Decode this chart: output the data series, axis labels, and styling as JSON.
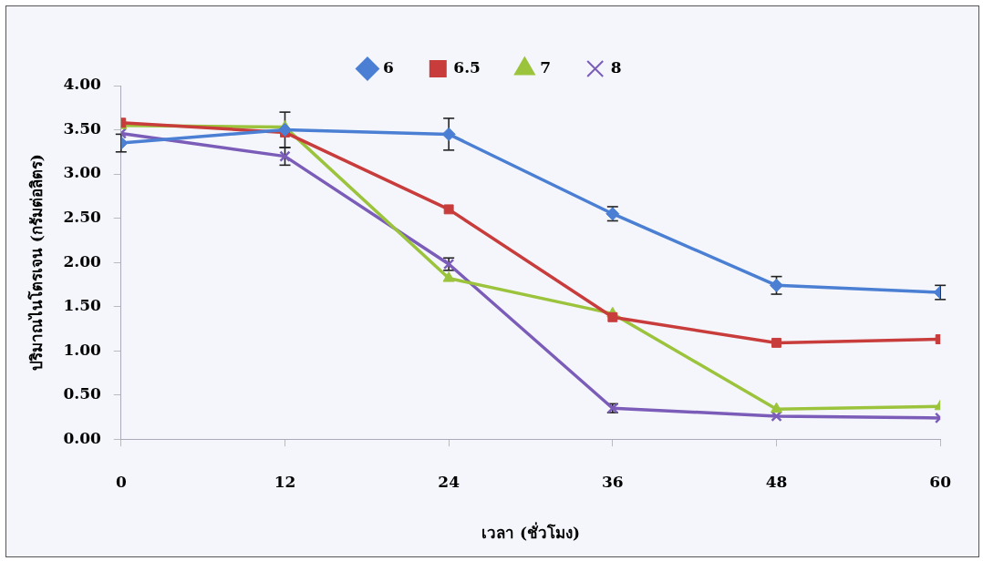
{
  "chart_data": {
    "type": "line",
    "xlabel": "เวลา (ชั่วโมง)",
    "ylabel": "ปริมาณไนโตรเจน (กรัมต่อลิตร)",
    "x": [
      0,
      12,
      24,
      36,
      48,
      60
    ],
    "xlim": [
      0,
      60
    ],
    "xticks": [
      0,
      12,
      24,
      36,
      48,
      60
    ],
    "ylim": [
      0,
      4
    ],
    "yticks": [
      {
        "value": 0,
        "label": "0.00"
      },
      {
        "value": 0.5,
        "label": "0.50"
      },
      {
        "value": 1,
        "label": "1.00"
      },
      {
        "value": 1.5,
        "label": "1.50"
      },
      {
        "value": 2,
        "label": "2.00"
      },
      {
        "value": 2.5,
        "label": "2.50"
      },
      {
        "value": 3,
        "label": "3.00"
      },
      {
        "value": 3.5,
        "label": "3.50"
      },
      {
        "value": 4,
        "label": "4.00"
      }
    ],
    "grid": false,
    "legend": "top",
    "series": [
      {
        "name": "6",
        "color": "#4a7fd4",
        "marker": "diamond",
        "values": [
          3.35,
          3.5,
          3.45,
          2.55,
          1.74,
          1.66
        ],
        "errors": [
          0.1,
          0.2,
          0.18,
          0.08,
          0.1,
          0.08
        ]
      },
      {
        "name": "6.5",
        "color": "#c83c3c",
        "marker": "square",
        "values": [
          3.58,
          3.47,
          2.6,
          1.38,
          1.09,
          1.13
        ]
      },
      {
        "name": "7",
        "color": "#9bc33c",
        "marker": "triangle",
        "values": [
          3.55,
          3.53,
          1.82,
          1.42,
          0.34,
          0.37
        ]
      },
      {
        "name": "8",
        "color": "#7b5cb8",
        "marker": "cross",
        "values": [
          3.46,
          3.2,
          1.98,
          0.35,
          0.26,
          0.24
        ],
        "errors": [
          null,
          0.1,
          0.07,
          0.05,
          null,
          null
        ]
      }
    ]
  }
}
